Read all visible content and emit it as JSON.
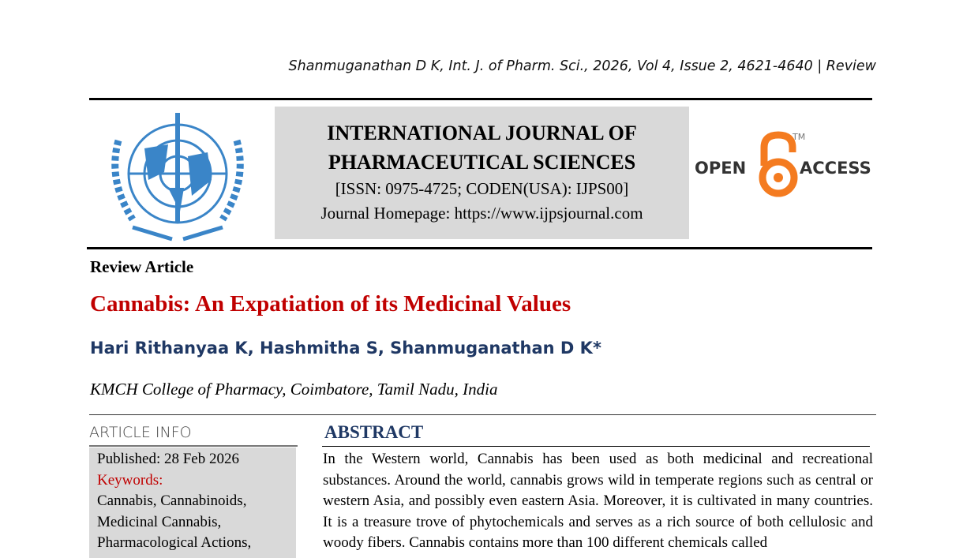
{
  "running_header": "Shanmuganathan D K, Int. J. of Pharm. Sci., 2026, Vol 4, Issue 2, 4621-4640 | Review",
  "journal": {
    "title_line1": "INTERNATIONAL JOURNAL OF",
    "title_line2": "PHARMACEUTICAL SCIENCES",
    "issn": "[ISSN: 0975-4725; CODEN(USA): IJPS00]",
    "homepage": "Journal Homepage: https://www.ijpsjournal.com",
    "logo": "un-caduceus-emblem",
    "logo_color": "#3a85c8"
  },
  "open_access": {
    "left": "OPEN",
    "right": "ACCESS",
    "tm": "TM",
    "color": "#f47b20"
  },
  "article": {
    "type": "Review Article",
    "title": "Cannabis: An Expatiation of its Medicinal Values",
    "authors": "Hari Rithanyaa K, Hashmitha S, Shanmuganathan D K*",
    "affiliation": "KMCH College of Pharmacy, Coimbatore, Tamil Nadu, India",
    "title_color": "#c00000",
    "author_color": "#1f3864"
  },
  "article_info": {
    "heading": "ARTICLE INFO",
    "published": "Published:  28 Feb 2026",
    "keywords_label": "Keywords:",
    "keywords": [
      "Cannabis, Cannabinoids,",
      "Medicinal Cannabis,",
      "Pharmacological Actions,"
    ]
  },
  "abstract": {
    "heading": "ABSTRACT",
    "text": "In the Western world, Cannabis has been used as both medicinal and recreational substances. Around the world, cannabis grows wild in temperate regions such as central or western Asia, and possibly even eastern Asia. Moreover, it is cultivated in many countries. It is a treasure trove of phytochemicals and serves as a rich source of both cellulosic and woody fibers. Cannabis contains more than 100 different chemicals called"
  }
}
